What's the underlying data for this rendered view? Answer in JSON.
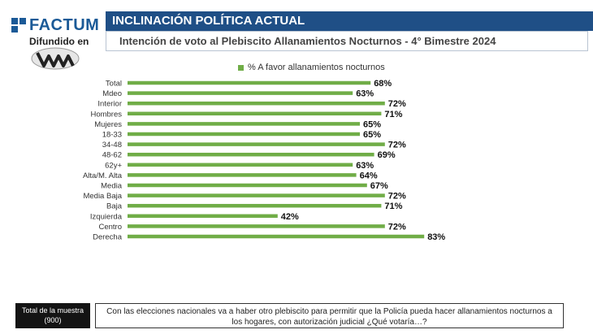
{
  "brand": {
    "name": "FACTUM",
    "broadcast_label": "Difundido en",
    "brand_color": "#1b5a97"
  },
  "header": {
    "title": "INCLINACIÓN POLÍTICA ACTUAL",
    "subtitle": "Intención de voto al Plebiscito Allanamientos Nocturnos - 4° Bimestre 2024",
    "bar_color": "#1f4f86"
  },
  "chart_data": {
    "type": "bar",
    "orientation": "horizontal",
    "legend": [
      "% A favor allanamientos nocturnos"
    ],
    "legend_position": "top",
    "bar_color": "#70ad47",
    "value_format": "percent",
    "xlim": [
      0,
      100
    ],
    "grid": false,
    "groups": [
      {
        "rows": [
          {
            "label": "Total",
            "value": 68
          }
        ]
      },
      {
        "rows": [
          {
            "label": "Mdeo",
            "value": 63
          },
          {
            "label": "Interior",
            "value": 72
          }
        ]
      },
      {
        "rows": [
          {
            "label": "Hombres",
            "value": 71
          },
          {
            "label": "Mujeres",
            "value": 65
          }
        ]
      },
      {
        "rows": [
          {
            "label": "18-33",
            "value": 65
          },
          {
            "label": "34-48",
            "value": 72
          },
          {
            "label": "48-62",
            "value": 69
          },
          {
            "label": "62y+",
            "value": 63
          }
        ]
      },
      {
        "rows": [
          {
            "label": "Alta/M. Alta",
            "value": 64
          },
          {
            "label": "Media",
            "value": 67
          },
          {
            "label": "Media Baja",
            "value": 72
          },
          {
            "label": "Baja",
            "value": 71
          }
        ]
      },
      {
        "rows": [
          {
            "label": "Izquierda",
            "value": 42
          },
          {
            "label": "Centro",
            "value": 72
          },
          {
            "label": "Derecha",
            "value": 83
          }
        ]
      }
    ]
  },
  "footer": {
    "sample_label": "Total de la muestra",
    "sample_value": "(900)",
    "question": "Con las elecciones nacionales va a haber otro plebiscito para permitir que la Policía pueda hacer allanamientos nocturnos a los hogares, con autorización judicial ¿Qué votaría…?"
  }
}
